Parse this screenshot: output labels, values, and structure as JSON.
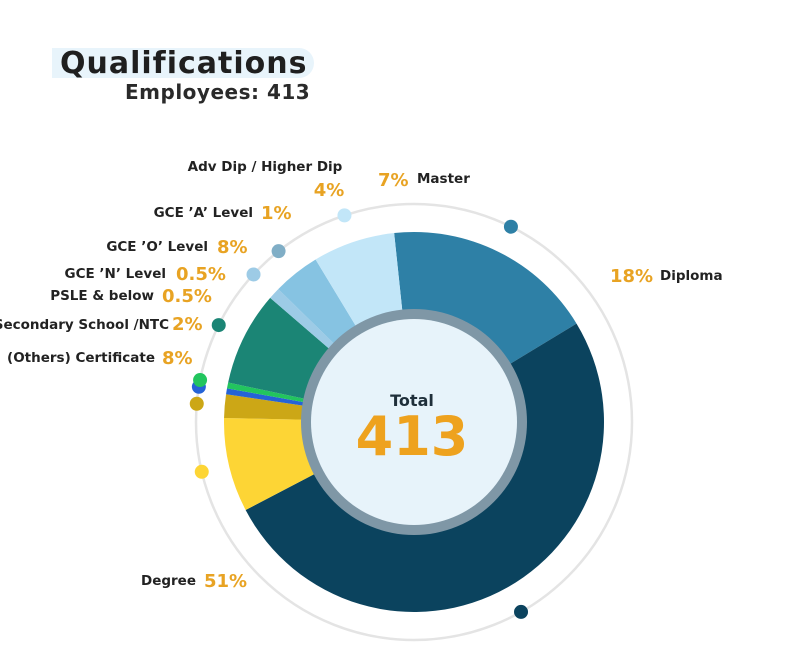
{
  "header": {
    "title": "Qualifications",
    "subtitle": "Employees: 413"
  },
  "chart_data": {
    "type": "pie",
    "variant": "donut",
    "center_label": "Total",
    "center_value": "413",
    "categories": [
      "Diploma",
      "Degree",
      "(Others) Certificate",
      "Secondary School /NTC",
      "PSLE & below",
      "GCE 'N' Level",
      "GCE 'O' Level",
      "GCE 'A' Level",
      "Adv Dip / Higher Dip",
      "Master"
    ],
    "values": [
      18,
      51,
      8,
      2,
      0.5,
      0.5,
      8,
      1,
      4,
      7
    ],
    "value_labels": [
      "18%",
      "51%",
      "8%",
      "2%",
      "0.5%",
      "0.5%",
      "8%",
      "1%",
      "4%",
      "7%"
    ],
    "colors": [
      "#2e80a6",
      "#0b435e",
      "#fdd535",
      "#cca716",
      "#2563d6",
      "#22c55e",
      "#1b8575",
      "#9dcbe6",
      "#86c3e2",
      "#c2e6f8"
    ],
    "dot_colors": [
      "#2e80a6",
      "#0b435e",
      "#fdd535",
      "#cca716",
      "#2563d6",
      "#22c55e",
      "#1b8575",
      "#9dcbe6",
      "#80aec6",
      "#c2e6f8"
    ]
  }
}
